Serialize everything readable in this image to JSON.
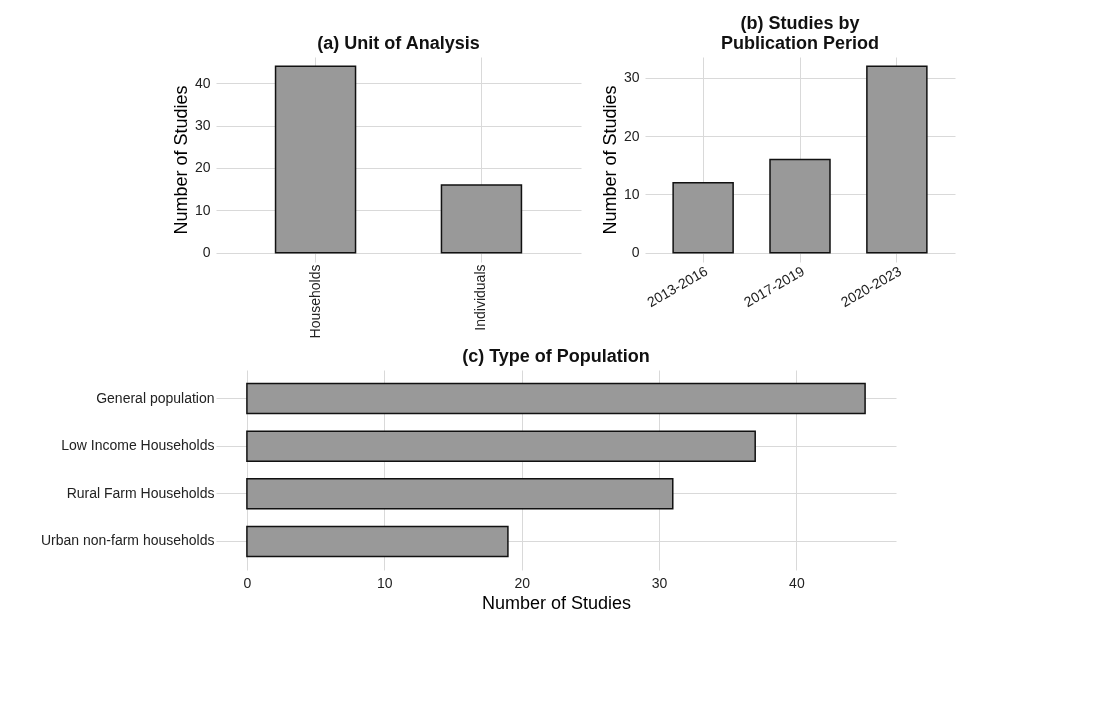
{
  "chart_data": [
    {
      "type": "bar",
      "title": "(a) Unit of Analysis",
      "ylabel": "Number of Studies",
      "categories": [
        "Households",
        "Individuals"
      ],
      "values": [
        44,
        16
      ],
      "color": "#999999",
      "ylim": [
        -2.2,
        46.2
      ],
      "yticks": [
        0,
        10,
        20,
        30,
        40
      ],
      "grid": true
    },
    {
      "type": "bar",
      "title": "(b) Studies by\nPublication Period",
      "ylabel": "Number of Studies",
      "categories": [
        "2013-2016",
        "2017-2019",
        "2020-2023"
      ],
      "values": [
        12,
        16,
        32
      ],
      "color": "#999999",
      "ylim": [
        -1.6,
        33.6
      ],
      "yticks": [
        0,
        10,
        20,
        30
      ],
      "grid": true
    },
    {
      "type": "bar",
      "orientation": "horizontal",
      "title": "(c) Type of Population",
      "xlabel": "Number of Studies",
      "categories": [
        "General population",
        "Low Income Households",
        "Rural Farm Households",
        "Urban non-farm households"
      ],
      "values": [
        45,
        37,
        31,
        19
      ],
      "color": "#999999",
      "xlim": [
        -2.25,
        47.25
      ],
      "xticks": [
        0,
        10,
        20,
        30,
        40
      ],
      "grid": true
    }
  ]
}
